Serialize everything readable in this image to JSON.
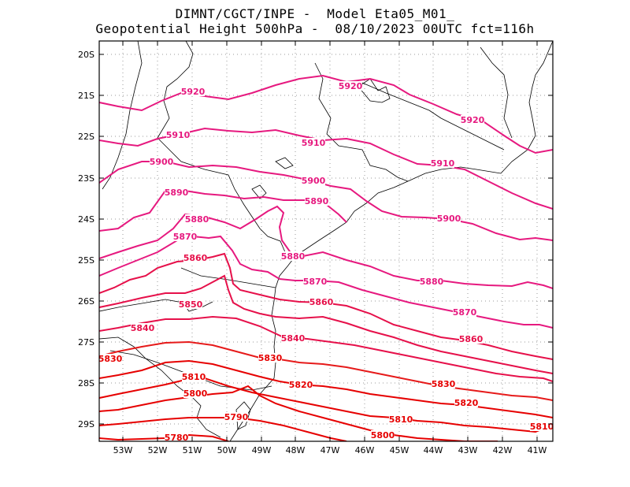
{
  "header": {
    "line1": "DIMNT/CGCT/INPE -  Model Eta05_M01_",
    "line2": "Geopotential Height 500hPa -  08/10/2023 00UTC fct=116h"
  },
  "axes": {
    "lat_labels": [
      "20S",
      "21S",
      "22S",
      "23S",
      "24S",
      "25S",
      "26S",
      "27S",
      "28S",
      "29S"
    ],
    "lon_labels": [
      "53W",
      "52W",
      "51W",
      "50W",
      "49W",
      "48W",
      "47W",
      "46W",
      "45W",
      "44W",
      "43W",
      "42W",
      "41W"
    ]
  },
  "colors": {
    "magenta": "#e6197f",
    "red": "#e60000",
    "mid": "#e6104a",
    "coast": "#000000",
    "grid": "#9a9a9a"
  },
  "contours": [
    {
      "value": 5920,
      "labels": [
        "5920",
        "5920",
        "5920"
      ]
    },
    {
      "value": 5910,
      "labels": [
        "5910",
        "5910",
        "5910"
      ]
    },
    {
      "value": 5900,
      "labels": [
        "5900",
        "5900",
        "5900"
      ]
    },
    {
      "value": 5890,
      "labels": [
        "5890",
        "5890"
      ]
    },
    {
      "value": 5880,
      "labels": [
        "5880",
        "5880",
        "5880"
      ]
    },
    {
      "value": 5870,
      "labels": [
        "5870",
        "5870",
        "5870"
      ]
    },
    {
      "value": 5860,
      "labels": [
        "5860",
        "5860",
        "5860"
      ]
    },
    {
      "value": 5850,
      "labels": [
        "5850"
      ]
    },
    {
      "value": 5840,
      "labels": [
        "5840",
        "5840"
      ]
    },
    {
      "value": 5830,
      "labels": [
        "5830",
        "5830",
        "5830"
      ]
    },
    {
      "value": 5820,
      "labels": [
        "5820",
        "5820"
      ]
    },
    {
      "value": 5810,
      "labels": [
        "5810",
        "5810",
        "5810"
      ]
    },
    {
      "value": 5800,
      "labels": [
        "5800",
        "5800"
      ]
    },
    {
      "value": 5790,
      "labels": [
        "5790"
      ]
    },
    {
      "value": 5780,
      "labels": [
        "5780"
      ]
    }
  ]
}
